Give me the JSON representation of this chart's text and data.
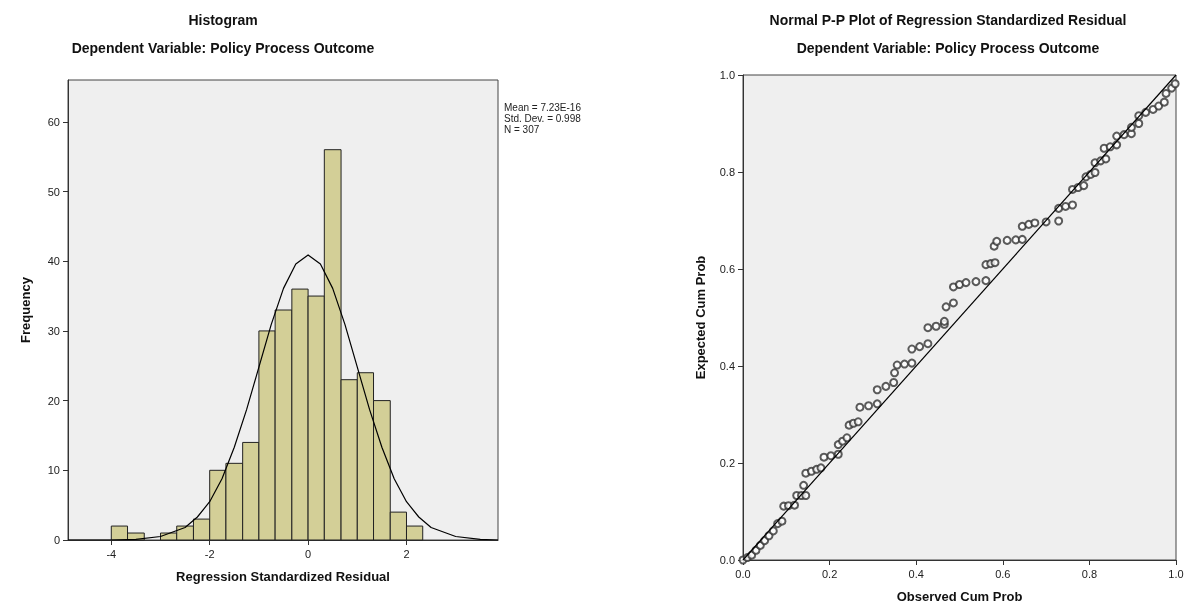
{
  "chart_data": [
    {
      "type": "histogram",
      "title": "Histogram",
      "subtitle": "Dependent Variable: Policy Process Outcome",
      "xlabel": "Regression Standardized Residual",
      "ylabel": "Frequency",
      "color": "#d3cf97",
      "bins": [
        -4,
        -3.67,
        -3.33,
        -3,
        -2.67,
        -2.33,
        -2,
        -1.67,
        -1.33,
        -1,
        -0.67,
        -0.33,
        0,
        0.33,
        0.67,
        1,
        1.33,
        1.67,
        2,
        2.33
      ],
      "values": [
        2,
        1,
        0,
        1,
        2,
        3,
        10,
        11,
        14,
        30,
        33,
        36,
        35,
        56,
        23,
        24,
        20,
        4,
        2
      ],
      "series": [
        {
          "type": "line",
          "color": "#000000",
          "x": [
            -4.88,
            -4,
            -3.5,
            -3,
            -2.5,
            -2.25,
            -2,
            -1.75,
            -1.5,
            -1.25,
            -1,
            -0.75,
            -0.5,
            -0.25,
            0,
            0.25,
            0.5,
            0.75,
            1,
            1.25,
            1.5,
            1.75,
            2,
            2.25,
            2.5,
            3,
            3.5,
            3.86
          ],
          "values": [
            0,
            0,
            0.1,
            0.5,
            1.8,
            3.3,
            5.5,
            8.8,
            13.3,
            18.7,
            24.8,
            30.9,
            36.1,
            39.6,
            40.9,
            39.6,
            36.1,
            30.9,
            24.8,
            18.7,
            13.3,
            8.8,
            5.5,
            3.3,
            1.8,
            0.5,
            0.1,
            0
          ]
        }
      ],
      "xlim": [
        -4.88,
        3.86
      ],
      "ylim": [
        0,
        66
      ],
      "xticks": [
        -4,
        -2,
        0,
        2
      ],
      "yticks": [
        0,
        10,
        20,
        30,
        40,
        50,
        60
      ],
      "grid": false,
      "annotations": [
        "Mean = 7.23E-16",
        "Std. Dev. = 0.998",
        "N = 307"
      ]
    },
    {
      "type": "scatter",
      "title": "Normal P-P Plot of Regression Standardized Residual",
      "subtitle": "Dependent Variable: Policy Process Outcome",
      "xlabel": "Observed Cum Prob",
      "ylabel": "Expected Cum Prob",
      "marker": "circle",
      "grid": false,
      "x": [
        0,
        0.01,
        0.02,
        0.03,
        0.04,
        0.05,
        0.06,
        0.07,
        0.08,
        0.09,
        0.094,
        0.105,
        0.119,
        0.124,
        0.135,
        0.145,
        0.14,
        0.145,
        0.158,
        0.17,
        0.18,
        0.187,
        0.203,
        0.22,
        0.22,
        0.23,
        0.24,
        0.245,
        0.255,
        0.266,
        0.27,
        0.29,
        0.31,
        0.31,
        0.33,
        0.348,
        0.35,
        0.356,
        0.373,
        0.39,
        0.39,
        0.408,
        0.427,
        0.427,
        0.446,
        0.465,
        0.465,
        0.469,
        0.486,
        0.486,
        0.5,
        0.515,
        0.538,
        0.561,
        0.561,
        0.572,
        0.582,
        0.58,
        0.586,
        0.61,
        0.63,
        0.645,
        0.645,
        0.66,
        0.674,
        0.7,
        0.729,
        0.729,
        0.745,
        0.761,
        0.761,
        0.774,
        0.787,
        0.792,
        0.803,
        0.813,
        0.813,
        0.826,
        0.838,
        0.834,
        0.848,
        0.863,
        0.863,
        0.88,
        0.897,
        0.897,
        0.914,
        0.914,
        0.93,
        0.947,
        0.96,
        0.973,
        0.977,
        0.99,
        0.998
      ],
      "series": [
        {
          "color": "#333333",
          "values": [
            0,
            0.005,
            0.01,
            0.02,
            0.03,
            0.04,
            0.05,
            0.06,
            0.075,
            0.08,
            0.111,
            0.112,
            0.113,
            0.133,
            0.133,
            0.133,
            0.154,
            0.179,
            0.183,
            0.187,
            0.19,
            0.212,
            0.215,
            0.218,
            0.238,
            0.245,
            0.252,
            0.278,
            0.282,
            0.285,
            0.315,
            0.318,
            0.322,
            0.351,
            0.358,
            0.366,
            0.386,
            0.402,
            0.404,
            0.406,
            0.435,
            0.44,
            0.446,
            0.479,
            0.482,
            0.486,
            0.492,
            0.522,
            0.53,
            0.563,
            0.568,
            0.572,
            0.574,
            0.576,
            0.609,
            0.611,
            0.613,
            0.647,
            0.657,
            0.659,
            0.66,
            0.661,
            0.688,
            0.692,
            0.695,
            0.697,
            0.699,
            0.725,
            0.729,
            0.732,
            0.764,
            0.768,
            0.772,
            0.79,
            0.795,
            0.799,
            0.819,
            0.823,
            0.827,
            0.849,
            0.852,
            0.856,
            0.874,
            0.877,
            0.879,
            0.892,
            0.9,
            0.916,
            0.923,
            0.929,
            0.936,
            0.944,
            0.962,
            0.973,
            0.982
          ]
        },
        {
          "type": "line",
          "marker": "none",
          "color": "#000000",
          "x": [
            0,
            1
          ],
          "values": [
            0,
            1
          ]
        }
      ],
      "xlim": [
        0,
        1
      ],
      "ylim": [
        0,
        1
      ],
      "xticks": [
        {
          "value": 0,
          "label": "0.0"
        },
        {
          "value": 0.2,
          "label": "0.2"
        },
        {
          "value": 0.4,
          "label": "0.4"
        },
        {
          "value": 0.6,
          "label": "0.6"
        },
        {
          "value": 0.8,
          "label": "0.8"
        },
        {
          "value": 1,
          "label": "1.0"
        }
      ],
      "yticks": [
        {
          "value": 0,
          "label": "0.0"
        },
        {
          "value": 0.2,
          "label": "0.2"
        },
        {
          "value": 0.4,
          "label": "0.4"
        },
        {
          "value": 0.6,
          "label": "0.6"
        },
        {
          "value": 0.8,
          "label": "0.8"
        },
        {
          "value": 1,
          "label": "1.0"
        }
      ]
    }
  ]
}
